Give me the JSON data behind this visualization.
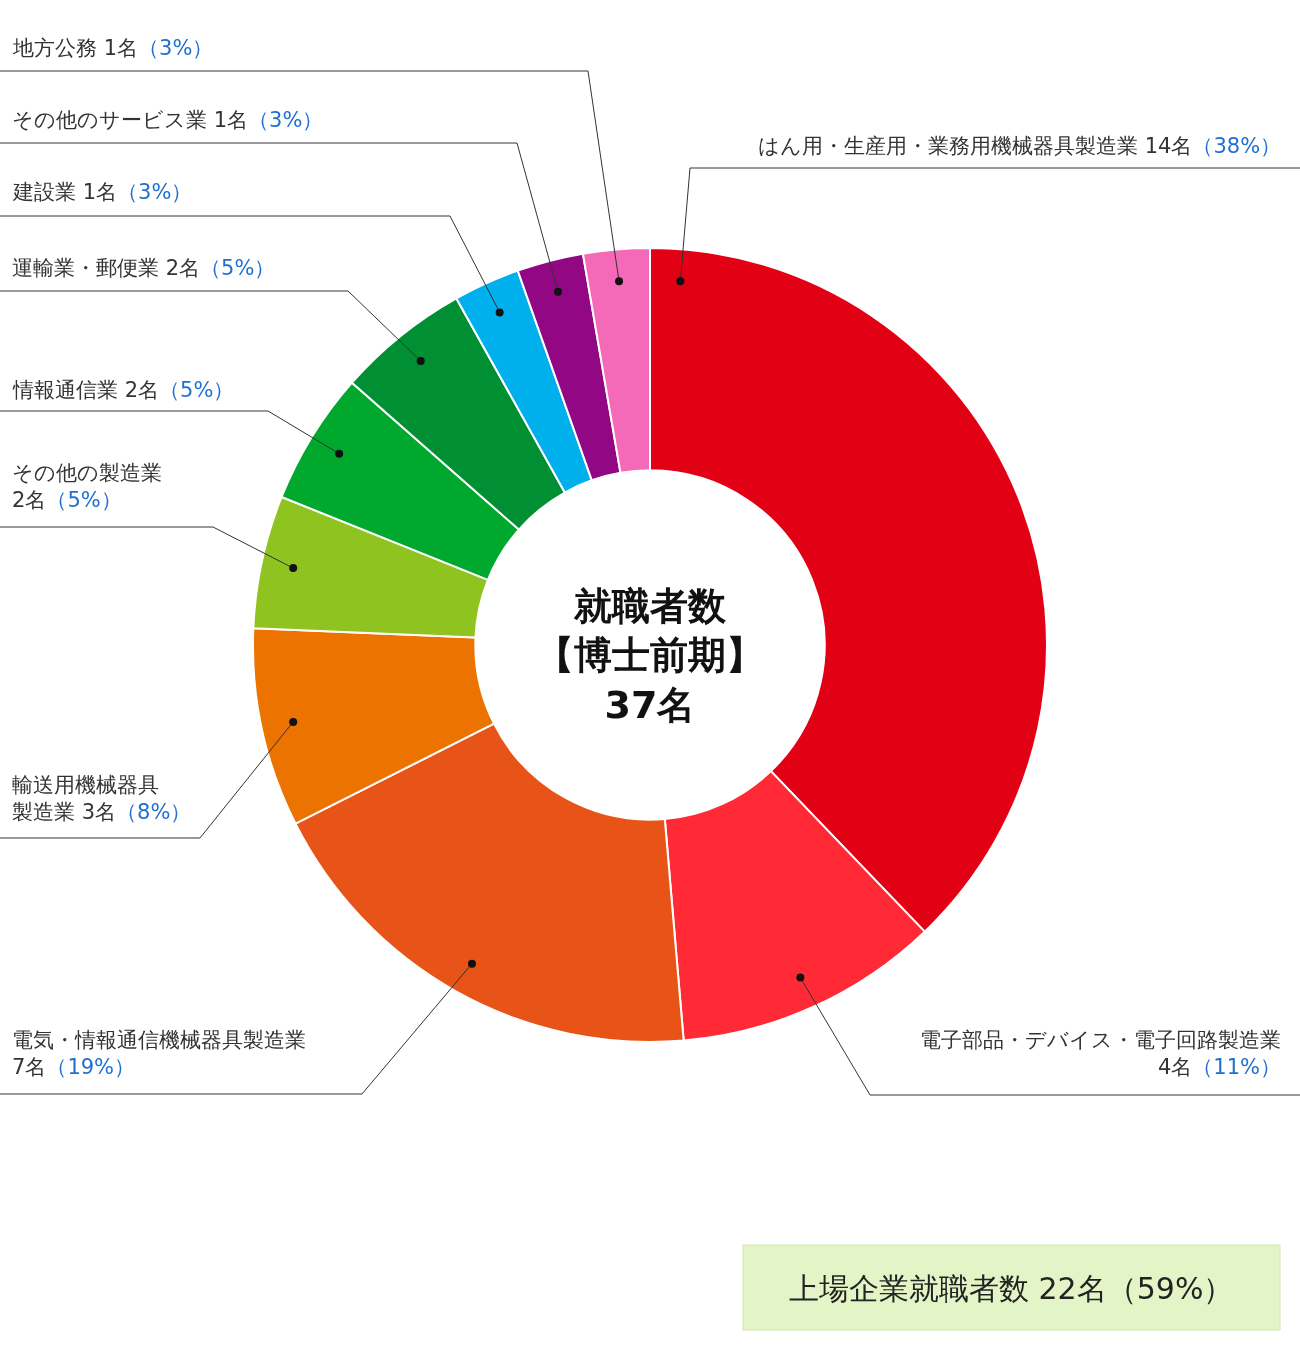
{
  "chart_data": {
    "type": "donut",
    "categories": [
      "はん用・生産用・業務用機械器具製造業",
      "電子部品・デバイス・電子回路製造業",
      "電気・情報通信機械器具製造業",
      "輸送用機械器具製造業",
      "その他の製造業",
      "情報通信業",
      "運輸業・郵便業",
      "建設業",
      "その他のサービス業",
      "地方公務"
    ],
    "values": [
      14,
      4,
      7,
      3,
      2,
      2,
      2,
      1,
      1,
      1
    ],
    "value_labels": [
      "14名（38%）",
      "4名（11%）",
      "7名（19%）",
      "3名（8%）",
      "2名（5%）",
      "2名（5%）",
      "2名（5%）",
      "1名（3%）",
      "1名（3%）",
      "1名（3%）"
    ],
    "colors": [
      "#e20015",
      "#ff2a35",
      "#e85318",
      "#ec7300",
      "#8fc31f",
      "#00a82d",
      "#009033",
      "#00b0ec",
      "#920783",
      "#f46ab8"
    ],
    "annotations": [
      "就職者数【博士前期】37名",
      "上場企業就職者数 22名（59%）"
    ]
  }
}
